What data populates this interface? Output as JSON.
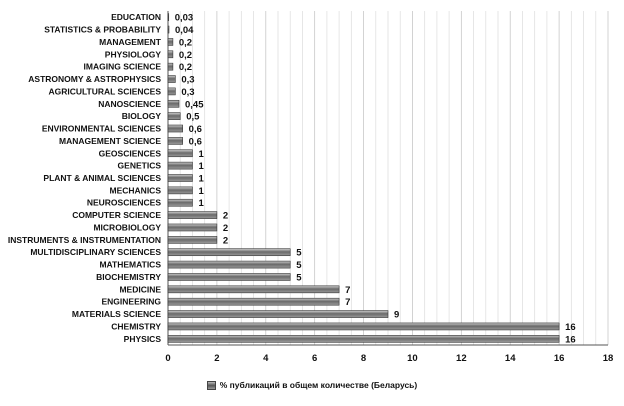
{
  "chart_data": {
    "type": "bar",
    "orientation": "horizontal",
    "categories": [
      "EDUCATION",
      "STATISTICS & PROBABILITY",
      "MANAGEMENT",
      "PHYSIOLOGY",
      "IMAGING SCIENCE",
      "ASTRONOMY & ASTROPHYSICS",
      "AGRICULTURAL SCIENCES",
      "NANOSCIENCE",
      "BIOLOGY",
      "ENVIRONMENTAL SCIENCES",
      "MANAGEMENT SCIENCE",
      "GEOSCIENCES",
      "GENETICS",
      "PLANT & ANIMAL SCIENCES",
      "MECHANICS",
      "NEUROSCIENCES",
      "COMPUTER SCIENCE",
      "MICROBIOLOGY",
      "INSTRUMENTS & INSTRUMENTATION",
      "MULTIDISCIPLINARY SCIENCES",
      "MATHEMATICS",
      "BIOCHEMISTRY",
      "MEDICINE",
      "ENGINEERING",
      "MATERIALS SCIENCE",
      "CHEMISTRY",
      "PHYSICS"
    ],
    "values": [
      0.03,
      0.04,
      0.2,
      0.2,
      0.2,
      0.3,
      0.3,
      0.45,
      0.5,
      0.6,
      0.6,
      1,
      1,
      1,
      1,
      1,
      2,
      2,
      2,
      5,
      5,
      5,
      7,
      7,
      9,
      16,
      16
    ],
    "value_labels": [
      "0,03",
      "0,04",
      "0,2",
      "0,2",
      "0,2",
      "0,3",
      "0,3",
      "0,45",
      "0,5",
      "0,6",
      "0,6",
      "1",
      "1",
      "1",
      "1",
      "1",
      "2",
      "2",
      "2",
      "5",
      "5",
      "5",
      "7",
      "7",
      "9",
      "16",
      "16"
    ],
    "series": [
      {
        "name": "% публикаций в общем количестве (Беларусь)"
      }
    ],
    "xlim": [
      0,
      18
    ],
    "xticks": [
      0,
      2,
      4,
      6,
      8,
      10,
      12,
      14,
      16,
      18
    ],
    "grid": "vertical",
    "legend": "bottom",
    "bar_color": "#7a7a7a"
  }
}
